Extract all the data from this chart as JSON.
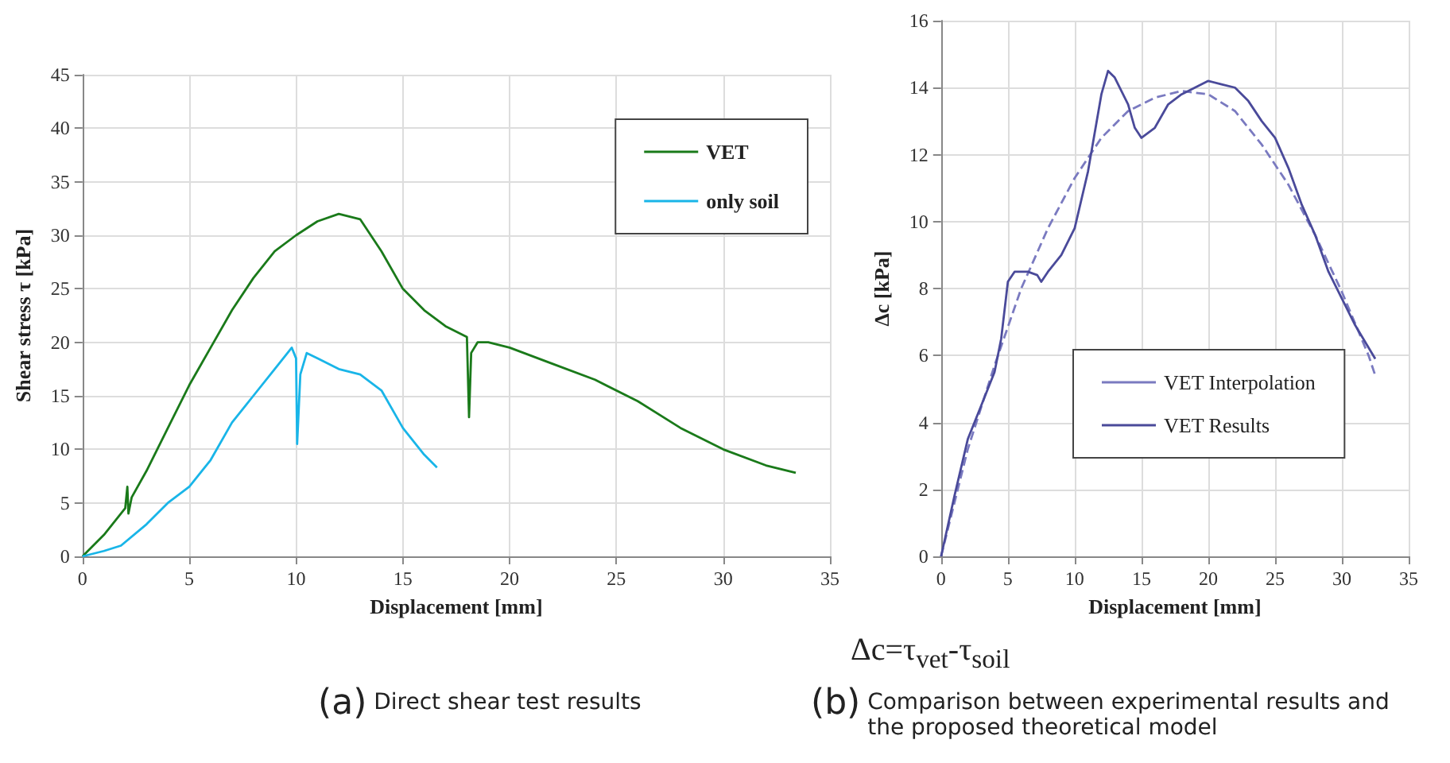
{
  "chart_data": [
    {
      "type": "line",
      "xlabel": "Displacement [mm]",
      "ylabel": "Shear stress τ [kPa]",
      "xlim": [
        0,
        35
      ],
      "xticks": [
        0,
        5,
        10,
        15,
        20,
        25,
        30,
        35
      ],
      "ylim": [
        0,
        45
      ],
      "yticks": [
        0,
        5,
        10,
        15,
        20,
        25,
        30,
        35,
        40,
        45
      ],
      "grid": true,
      "legend": "top right",
      "marker": "none",
      "line_style": "solid",
      "annotations": [
        "(a) Direct shear test results"
      ],
      "series": [
        {
          "name": "VET",
          "color": "#1a7a1a",
          "x": [
            0,
            1,
            2,
            2.1,
            2.15,
            2.3,
            3,
            4,
            5,
            6,
            7,
            8,
            9,
            10,
            11,
            12,
            13,
            14,
            15,
            16,
            17,
            18,
            18.1,
            18.2,
            18.5,
            19,
            20,
            22,
            24,
            26,
            28,
            30,
            32,
            33.4
          ],
          "values": [
            0,
            2,
            4.5,
            6.5,
            4,
            5.5,
            8,
            12,
            16,
            19.5,
            23,
            26,
            28.5,
            30,
            31.3,
            32,
            31.5,
            28.5,
            25,
            23,
            21.5,
            20.5,
            13,
            19,
            20,
            20,
            19.5,
            18,
            16.5,
            14.5,
            12,
            10,
            8.5,
            7.8
          ]
        },
        {
          "name": "only soil",
          "color": "#19b5e8",
          "x": [
            0,
            1,
            1.8,
            3,
            4,
            5,
            6,
            7,
            8,
            9,
            9.8,
            10,
            10.05,
            10.2,
            10.5,
            11,
            12,
            13,
            14,
            15,
            16,
            16.6
          ],
          "values": [
            0,
            0.5,
            1,
            3,
            5,
            6.5,
            9,
            12.5,
            15,
            17.5,
            19.5,
            18.5,
            10.5,
            17,
            19,
            18.5,
            17.5,
            17,
            15.5,
            12,
            9.5,
            8.3
          ]
        }
      ]
    },
    {
      "type": "line",
      "xlabel": "Displacement [mm]",
      "ylabel": "Δc [kPa]",
      "xlim": [
        0,
        35
      ],
      "xticks": [
        0,
        5,
        10,
        15,
        20,
        25,
        30,
        35
      ],
      "ylim": [
        0,
        16
      ],
      "yticks": [
        0,
        2,
        4,
        6,
        8,
        10,
        12,
        14,
        16
      ],
      "grid": true,
      "legend": "bottom",
      "marker": "none",
      "annotations": [
        "Δc=τ$_{vet}$-τ$_{soil}$",
        "(b) Comparison between experimental results and the proposed theoretical model"
      ],
      "series": [
        {
          "name": "VET Interpolation",
          "color": "#7a7ac0",
          "line_style": "dashed",
          "x": [
            0,
            2,
            4,
            6,
            8,
            10,
            12,
            14,
            16,
            18,
            20,
            22,
            24,
            26,
            28,
            30,
            32,
            32.5
          ],
          "values": [
            0,
            3.2,
            5.7,
            8,
            9.8,
            11.3,
            12.5,
            13.3,
            13.7,
            13.9,
            13.8,
            13.3,
            12.3,
            11.1,
            9.6,
            7.9,
            6,
            5.4
          ]
        },
        {
          "name": "VET Results",
          "color": "#4a4a9a",
          "line_style": "solid",
          "x": [
            0,
            1,
            2,
            3,
            4,
            4.5,
            5,
            5.5,
            6.5,
            7.2,
            7.5,
            8,
            9,
            10,
            11,
            12,
            12.5,
            13,
            14,
            14.5,
            15,
            16,
            17,
            18,
            19,
            20,
            21,
            22,
            23,
            24,
            25,
            26,
            27,
            28,
            29,
            30,
            31,
            32.5
          ],
          "values": [
            0,
            1.8,
            3.5,
            4.5,
            5.5,
            6.5,
            8.2,
            8.5,
            8.5,
            8.4,
            8.2,
            8.5,
            9,
            9.8,
            11.5,
            13.8,
            14.5,
            14.3,
            13.5,
            12.8,
            12.5,
            12.8,
            13.5,
            13.8,
            14,
            14.2,
            14.1,
            14,
            13.6,
            13,
            12.5,
            11.6,
            10.5,
            9.6,
            8.5,
            7.7,
            6.9,
            5.9
          ]
        }
      ]
    }
  ]
}
